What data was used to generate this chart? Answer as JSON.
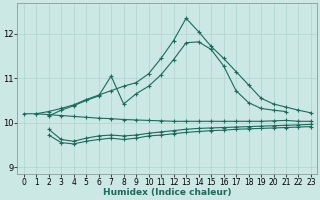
{
  "xlabel": "Humidex (Indice chaleur)",
  "xlim": [
    -0.5,
    23.5
  ],
  "ylim": [
    8.85,
    12.7
  ],
  "xticks": [
    0,
    1,
    2,
    3,
    4,
    5,
    6,
    7,
    8,
    9,
    10,
    11,
    12,
    13,
    14,
    15,
    16,
    17,
    18,
    19,
    20,
    21,
    22,
    23
  ],
  "yticks": [
    9,
    10,
    11,
    12
  ],
  "bg_color": "#cce8e4",
  "line_color": "#1a6b5a",
  "grid_color": "#aed4cf",
  "series": [
    {
      "x": [
        1,
        2,
        3,
        4,
        5,
        6,
        7,
        8,
        9,
        10,
        11,
        12,
        13,
        14,
        15,
        16,
        17,
        18,
        19,
        20,
        21,
        22,
        23
      ],
      "y": [
        10.2,
        10.25,
        10.32,
        10.4,
        10.52,
        10.62,
        10.72,
        10.82,
        10.9,
        11.1,
        11.45,
        11.85,
        12.35,
        12.05,
        11.72,
        11.45,
        11.15,
        10.85,
        10.55,
        10.42,
        10.35,
        10.28,
        10.22
      ]
    },
    {
      "x": [
        2,
        3,
        4,
        5,
        6,
        7,
        8,
        9,
        10,
        11,
        12,
        13,
        14,
        15,
        16,
        17,
        18,
        19,
        20,
        21
      ],
      "y": [
        10.15,
        10.28,
        10.38,
        10.5,
        10.6,
        11.05,
        10.42,
        10.65,
        10.82,
        11.08,
        11.42,
        11.8,
        11.82,
        11.65,
        11.28,
        10.72,
        10.45,
        10.32,
        10.28,
        10.25
      ]
    },
    {
      "x": [
        0,
        1,
        2,
        3,
        4,
        5,
        6,
        7,
        8,
        9,
        10,
        11,
        12,
        13,
        14,
        15,
        16,
        17,
        18,
        19,
        20,
        21,
        22,
        23
      ],
      "y": [
        10.2,
        10.2,
        10.18,
        10.16,
        10.14,
        10.12,
        10.1,
        10.09,
        10.07,
        10.06,
        10.05,
        10.04,
        10.03,
        10.03,
        10.03,
        10.03,
        10.03,
        10.03,
        10.03,
        10.03,
        10.04,
        10.05,
        10.03,
        10.03
      ]
    },
    {
      "x": [
        2,
        3,
        4,
        5,
        6,
        7,
        8,
        9,
        10,
        11,
        12,
        13,
        14,
        15,
        16,
        17,
        18,
        19,
        20,
        21,
        22,
        23
      ],
      "y": [
        9.85,
        9.62,
        9.58,
        9.65,
        9.7,
        9.72,
        9.7,
        9.72,
        9.76,
        9.79,
        9.82,
        9.85,
        9.87,
        9.88,
        9.89,
        9.9,
        9.91,
        9.92,
        9.93,
        9.94,
        9.95,
        9.96
      ]
    },
    {
      "x": [
        2,
        3,
        4,
        5,
        6,
        7,
        8,
        9,
        10,
        11,
        12,
        13,
        14,
        15,
        16,
        17,
        18,
        19,
        20,
        21,
        22,
        23
      ],
      "y": [
        9.72,
        9.55,
        9.52,
        9.58,
        9.62,
        9.65,
        9.62,
        9.65,
        9.7,
        9.72,
        9.75,
        9.78,
        9.8,
        9.82,
        9.83,
        9.85,
        9.86,
        9.87,
        9.88,
        9.89,
        9.9,
        9.91
      ]
    }
  ]
}
